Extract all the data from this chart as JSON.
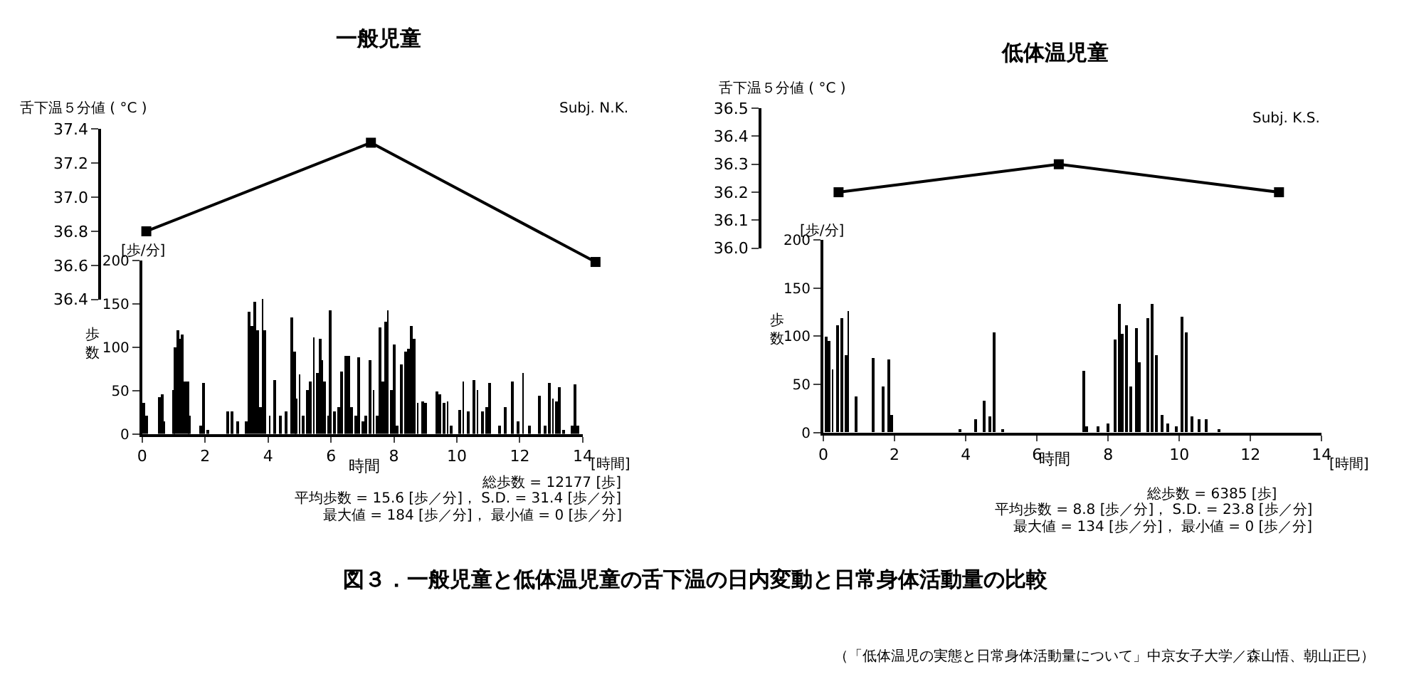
{
  "chart_data": [
    {
      "type": "line",
      "title": "一般児童",
      "ylabel": "舌下温５分値 ( °C )",
      "annotations": [
        "Subj. N.K."
      ],
      "categories": [
        null,
        null,
        null
      ],
      "values": [
        36.8,
        37.32,
        36.62
      ],
      "color": "#000000",
      "marker": "square",
      "line_style": "solid",
      "ylim": [
        36.4,
        37.4
      ],
      "yticks": [
        {
          "value": 36.4,
          "label": "36.4"
        },
        {
          "value": 36.6,
          "label": "36.6"
        },
        {
          "value": 36.8,
          "label": "36.8"
        },
        {
          "value": 37.0,
          "label": "37.0"
        },
        {
          "value": 37.2,
          "label": "37.2"
        },
        {
          "value": 37.4,
          "label": "37.4"
        }
      ],
      "tick_labels": "y"
    },
    {
      "type": "bar",
      "xlabel": "時間",
      "ylabel": "歩数",
      "annotations": [
        "[歩/分]",
        "[時間]",
        "総歩数 = 12177 [歩]",
        "平均歩数 = 15.6 [歩／分]， S.D. = 31.4 [歩／分]",
        "最大値 = 184 [歩／分]， 最小値 = 0 [歩／分]"
      ],
      "x": [
        0.05,
        0.15,
        0.55,
        0.65,
        0.7,
        1.0,
        1.05,
        1.12,
        1.2,
        1.28,
        1.35,
        1.45,
        1.5,
        1.85,
        1.95,
        2.1,
        2.7,
        2.85,
        3.05,
        3.3,
        3.4,
        3.5,
        3.58,
        3.65,
        3.75,
        3.82,
        3.9,
        4.05,
        4.2,
        4.4,
        4.55,
        4.75,
        4.82,
        4.9,
        5.0,
        5.1,
        5.25,
        5.35,
        5.45,
        5.55,
        5.65,
        5.72,
        5.8,
        5.9,
        5.97,
        6.1,
        6.25,
        6.35,
        6.45,
        6.55,
        6.65,
        6.8,
        6.88,
        7.0,
        7.1,
        7.25,
        7.35,
        7.45,
        7.55,
        7.65,
        7.75,
        7.8,
        7.9,
        8.0,
        8.1,
        8.25,
        8.35,
        8.45,
        8.55,
        8.62,
        8.75,
        8.9,
        9.0,
        9.35,
        9.45,
        9.6,
        9.7,
        9.8,
        10.1,
        10.2,
        10.35,
        10.55,
        10.65,
        10.8,
        10.95,
        11.05,
        11.35,
        11.55,
        11.75,
        11.95,
        12.1,
        12.3,
        12.6,
        12.8,
        12.95,
        13.05,
        13.15,
        13.25,
        13.4,
        13.65,
        13.75,
        13.85
      ],
      "values": [
        35,
        20,
        42,
        45,
        15,
        50,
        100,
        120,
        110,
        115,
        60,
        60,
        20,
        10,
        58,
        5,
        25,
        25,
        15,
        15,
        140,
        125,
        153,
        120,
        30,
        155,
        120,
        20,
        62,
        20,
        25,
        135,
        95,
        40,
        68,
        20,
        50,
        60,
        112,
        70,
        110,
        85,
        60,
        20,
        143,
        25,
        30,
        72,
        90,
        90,
        30,
        20,
        88,
        15,
        20,
        85,
        50,
        20,
        122,
        60,
        130,
        143,
        50,
        103,
        10,
        80,
        95,
        98,
        125,
        110,
        35,
        38,
        35,
        48,
        45,
        35,
        38,
        10,
        28,
        60,
        25,
        62,
        50,
        25,
        30,
        58,
        10,
        30,
        60,
        15,
        70,
        10,
        43,
        10,
        58,
        40,
        38,
        53,
        5,
        10,
        57,
        10
      ],
      "color": "#000000",
      "xlim": [
        0,
        14
      ],
      "xticks": [
        0,
        2,
        4,
        6,
        8,
        10,
        12,
        14
      ],
      "ylim": [
        0,
        200
      ],
      "yticks": [
        0,
        50,
        100,
        150,
        200
      ]
    },
    {
      "type": "line",
      "title": "低体温児童",
      "ylabel": "舌下温５分値 ( °C )",
      "annotations": [
        "Subj. K.S."
      ],
      "categories": [
        null,
        null,
        null
      ],
      "values": [
        36.2,
        36.3,
        36.2
      ],
      "color": "#000000",
      "marker": "square",
      "line_style": "solid",
      "ylim": [
        36.0,
        36.5
      ],
      "yticks": [
        {
          "value": 36.0,
          "label": "36.0"
        },
        {
          "value": 36.1,
          "label": "36.1"
        },
        {
          "value": 36.2,
          "label": "36.2"
        },
        {
          "value": 36.3,
          "label": "36.3"
        },
        {
          "value": 36.4,
          "label": "36.4"
        },
        {
          "value": 36.5,
          "label": "36.5"
        }
      ],
      "tick_labels": "y"
    },
    {
      "type": "bar",
      "xlabel": "時間",
      "ylabel": "歩数",
      "annotations": [
        "[歩/分]",
        "[時間]",
        "総歩数 = 6385 [歩]",
        "平均歩数 = 8.8 [歩／分]， S.D. = 23.8 [歩／分]",
        "最大値 = 134 [歩／分]， 最小値 = 0 [歩／分]",
        "図３．一般児童と低体温児童の舌下温の日内変動と日常身体活動量の比較",
        "（「低体温児の実態と日常身体活動量について」中京女子大学／森山悟、朝山正巳）"
      ],
      "x": [
        0.07,
        0.17,
        0.26,
        0.4,
        0.53,
        0.63,
        0.7,
        0.92,
        1.39,
        1.68,
        1.85,
        1.92,
        3.83,
        4.29,
        4.53,
        4.66,
        4.78,
        5.02,
        7.33,
        7.4,
        7.73,
        7.99,
        8.2,
        8.3,
        8.39,
        8.52,
        8.63,
        8.78,
        8.89,
        9.11,
        9.25,
        9.34,
        9.51,
        9.68,
        9.91,
        10.08,
        10.21,
        10.37,
        10.57,
        10.77,
        11.1
      ],
      "values": [
        100,
        95,
        66,
        111,
        119,
        80,
        126,
        37,
        78,
        47,
        76,
        18,
        4,
        13,
        33,
        16,
        104,
        3,
        64,
        6,
        6,
        10,
        97,
        134,
        102,
        111,
        47,
        109,
        73,
        119,
        134,
        80,
        18,
        10,
        6,
        120,
        104,
        16,
        13,
        13,
        3
      ],
      "color": "#000000",
      "xlim": [
        0,
        14
      ],
      "xticks": [
        0,
        2,
        4,
        6,
        8,
        10,
        12,
        14
      ],
      "ylim": [
        0,
        200
      ],
      "yticks": [
        0,
        50,
        100,
        150,
        200
      ]
    }
  ]
}
